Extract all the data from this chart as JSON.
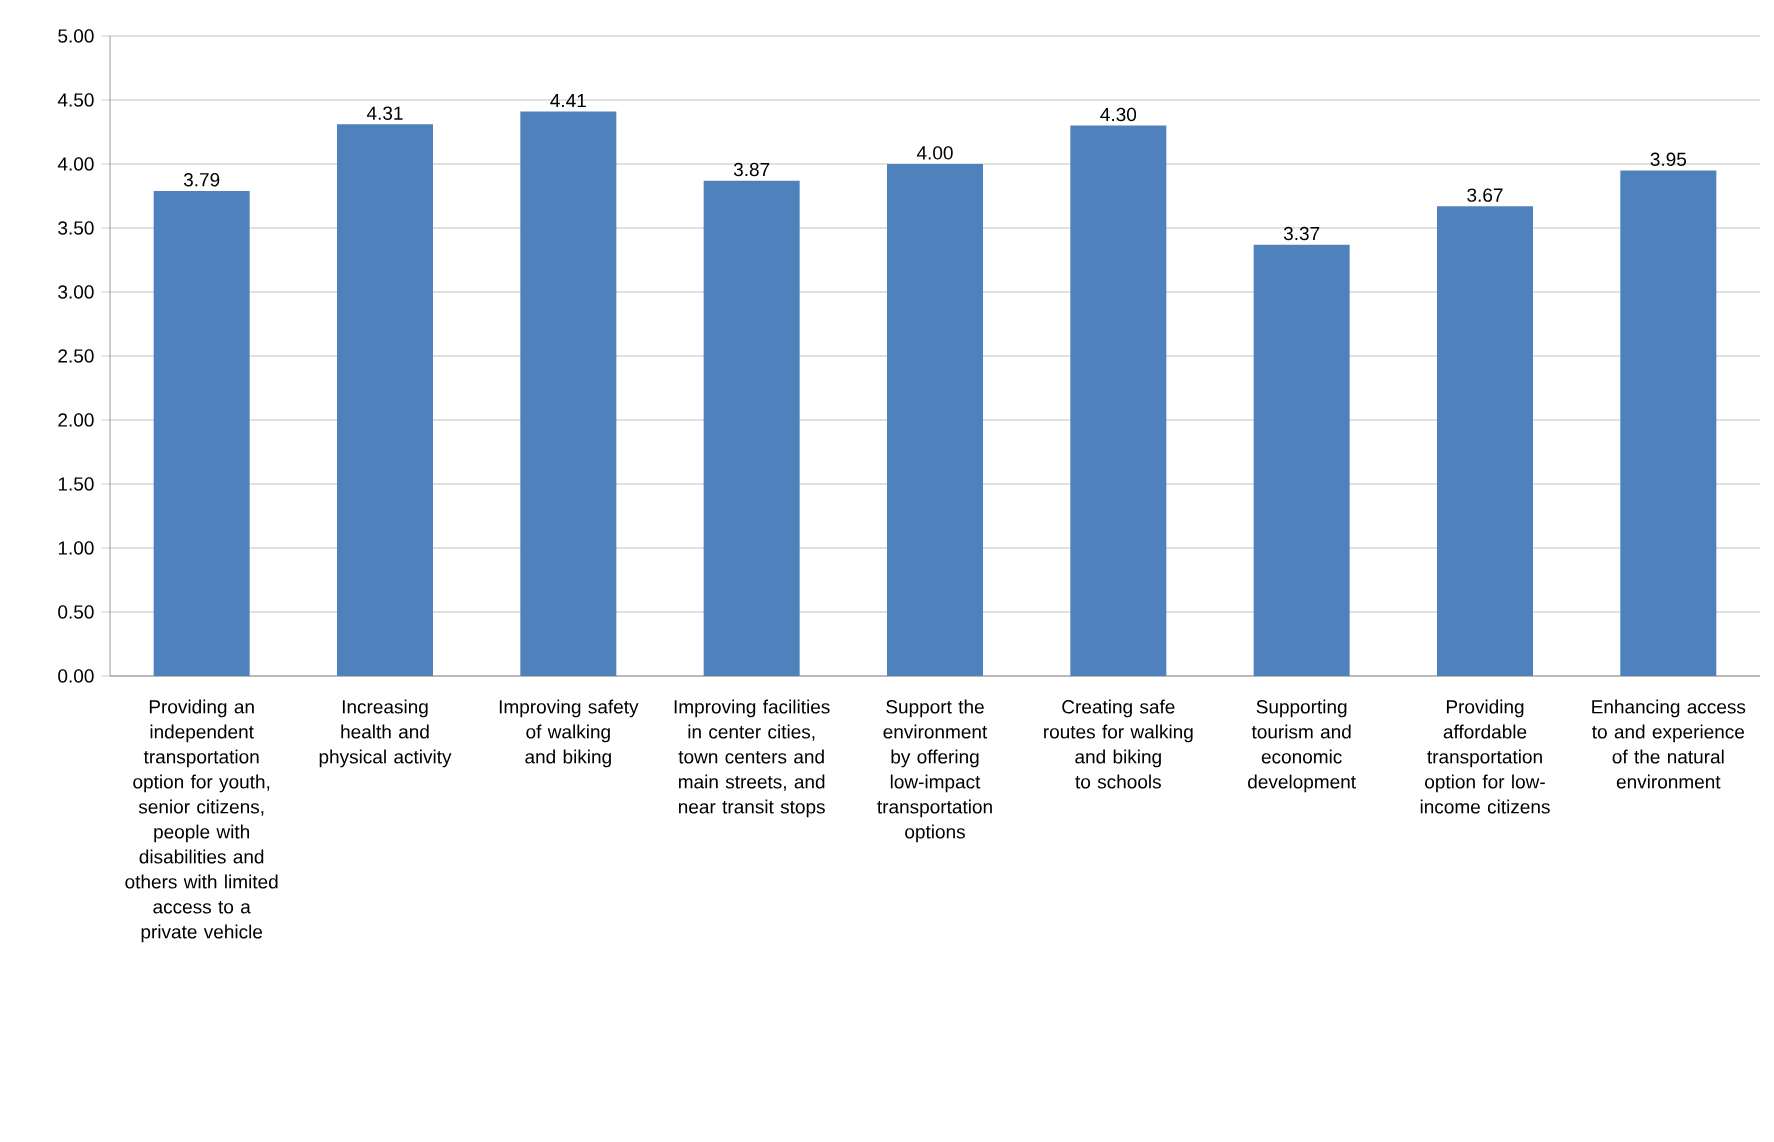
{
  "chart_data": {
    "type": "bar",
    "categories": [
      "Providing an independent transportation option for youth, senior citizens, people with disabilities and others with limited access to a private vehicle",
      "Increasing health and physical activity",
      "Improving safety of walking and biking",
      "Improving facilities in center cities, town centers and main streets, and near transit stops",
      "Support the environment by offering low-impact transportation options",
      "Creating safe routes for walking and biking to schools",
      "Supporting tourism and economic development",
      "Providing affordable transportation option for low-income citizens",
      "Enhancing access to and experience of the natural environment"
    ],
    "values": [
      3.79,
      4.31,
      4.41,
      3.87,
      4.0,
      4.3,
      3.37,
      3.67,
      3.95
    ],
    "value_labels": [
      "3.79",
      "4.31",
      "4.41",
      "3.87",
      "4.00",
      "4.30",
      "3.37",
      "3.67",
      "3.95"
    ],
    "color": "#4f81bd",
    "ylim": [
      0,
      5
    ],
    "yticks": [
      {
        "value": 0,
        "label": "0.00"
      },
      {
        "value": 0.5,
        "label": "0.50"
      },
      {
        "value": 1,
        "label": "1.00"
      },
      {
        "value": 1.5,
        "label": "1.50"
      },
      {
        "value": 2,
        "label": "2.00"
      },
      {
        "value": 2.5,
        "label": "2.50"
      },
      {
        "value": 3,
        "label": "3.00"
      },
      {
        "value": 3.5,
        "label": "3.50"
      },
      {
        "value": 4,
        "label": "4.00"
      },
      {
        "value": 4.5,
        "label": "4.50"
      },
      {
        "value": 5,
        "label": "5.00"
      }
    ],
    "grid": "y"
  }
}
